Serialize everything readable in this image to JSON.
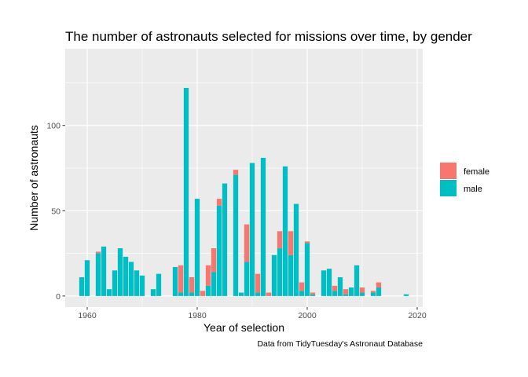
{
  "chart_data": {
    "type": "bar",
    "stacked": true,
    "title": "The number of astronauts selected for missions over time, by gender",
    "xlabel": "Year of selection",
    "ylabel": "Number of astronauts",
    "caption": "Data from TidyTuesday's Astronaut Database",
    "xlim": [
      1956,
      2021
    ],
    "ylim": [
      -6.5,
      145
    ],
    "x_ticks": [
      1960,
      1980,
      2000,
      2020
    ],
    "y_ticks": [
      0,
      50,
      100
    ],
    "grid": true,
    "legend_position": "right",
    "colors": {
      "female": "#f8766d",
      "male": "#00bfc4",
      "panel": "#ebebeb",
      "grid": "#ffffff"
    },
    "series": [
      {
        "name": "female",
        "values": [
          0,
          0,
          1,
          0,
          0,
          0,
          0,
          0,
          0,
          0,
          0,
          0,
          0,
          0,
          0,
          0,
          0,
          16,
          0,
          9,
          0,
          3,
          12,
          14,
          4,
          0,
          0,
          3,
          0,
          22,
          0,
          11,
          0,
          2,
          0,
          10,
          0,
          14,
          0,
          5,
          1,
          1,
          0,
          0,
          0,
          3,
          0,
          3,
          0,
          0,
          3,
          0,
          1,
          3,
          0,
          0,
          0,
          0,
          0
        ]
      },
      {
        "name": "male",
        "values": [
          11,
          21,
          25,
          29,
          4,
          15,
          28,
          23,
          20,
          15,
          12,
          0,
          4,
          13,
          0,
          0,
          17,
          2,
          122,
          2,
          57,
          0,
          6,
          14,
          53,
          66,
          0,
          71,
          2,
          20,
          78,
          2,
          81,
          0,
          24,
          28,
          76,
          24,
          54,
          3,
          31,
          1,
          0,
          15,
          16,
          3,
          11,
          1,
          5,
          18,
          2,
          0,
          2,
          5,
          0,
          0,
          0,
          0,
          1
        ]
      }
    ],
    "x": [
      1959,
      1960,
      1962,
      1963,
      1964,
      1965,
      1966,
      1967,
      1968,
      1969,
      1970,
      1971,
      1972,
      1973,
      1974,
      1975,
      1976,
      1977,
      1978,
      1979,
      1980,
      1981,
      1982,
      1983,
      1984,
      1985,
      1986,
      1987,
      1988,
      1989,
      1990,
      1991,
      1992,
      1993,
      1994,
      1995,
      1996,
      1997,
      1998,
      1999,
      2000,
      2001,
      2002,
      2003,
      2004,
      2005,
      2006,
      2007,
      2008,
      2009,
      2010,
      2011,
      2012,
      2013,
      2014,
      2015,
      2016,
      2017,
      2018
    ]
  },
  "legend": {
    "items": [
      "female",
      "male"
    ]
  }
}
